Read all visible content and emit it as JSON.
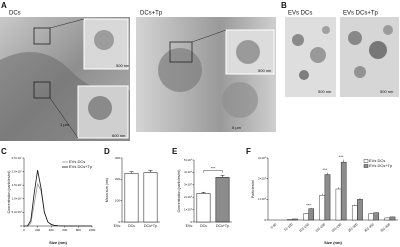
{
  "panel_labels": [
    "A",
    "B",
    "C",
    "D",
    "E",
    "F"
  ],
  "images": [
    {
      "title": "DCs",
      "scale_bars": [
        "500 nm",
        "1 µm",
        "600 nm"
      ]
    },
    {
      "title": "DCs+Tp",
      "scale_bars": [
        "500 nm",
        "5 µm"
      ]
    },
    {
      "title": "EVs DCs",
      "scale_bars": [
        "500 nm"
      ]
    },
    {
      "title": "EVs DCs+Tp",
      "scale_bars": [
        "500 nm"
      ]
    }
  ],
  "chart_data": [
    {
      "type": "line",
      "x_label": "Size (nm)",
      "y_label": "Concentration (particles/ml)",
      "x": [
        0,
        50,
        100,
        150,
        200,
        250,
        300,
        350,
        400,
        450,
        500,
        600,
        700,
        800,
        900,
        1000
      ],
      "series": [
        {
          "name": "EVs DCs",
          "color": "#9a9a9a",
          "values": [
            0,
            0,
            1000000,
            8000000,
            15500000,
            13000000,
            5000000,
            1500000,
            500000,
            200000,
            100000,
            0,
            0,
            0,
            0,
            0
          ]
        },
        {
          "name": "EVs DCs+Tp",
          "color": "#111111",
          "values": [
            0,
            0,
            2000000,
            12000000,
            20500000,
            14000000,
            5000000,
            1500000,
            600000,
            200000,
            100000,
            0,
            0,
            0,
            0,
            0
          ]
        }
      ],
      "xlim": [
        0,
        1000
      ],
      "xticks": [
        0,
        200,
        400,
        600,
        800,
        1000
      ],
      "ylim": [
        0,
        25000000
      ],
      "yticks": [
        0,
        {
          "value": 5000000,
          "label": "5.0×10⁶"
        },
        {
          "value": 10000000,
          "label": "1.0×10⁷"
        },
        {
          "value": 15000000,
          "label": "1.5×10⁷"
        },
        {
          "value": 20000000,
          "label": "2.0×10⁷"
        },
        {
          "value": 25000000,
          "label": "2.5×10⁷"
        }
      ]
    },
    {
      "type": "bar",
      "y_label": "Mean size (nm)",
      "category_prefix": "EVs:",
      "categories": [
        "DCs",
        "DCs+Tp"
      ],
      "values": [
        228,
        232
      ],
      "errors": [
        8,
        10
      ],
      "colors": [
        "#ffffff",
        "#ffffff"
      ],
      "ylim": [
        0,
        300
      ],
      "yticks": [
        0,
        100,
        200,
        300
      ]
    },
    {
      "type": "bar",
      "y_label": "Concentration (particles/ml)",
      "category_prefix": "EVs:",
      "categories": [
        "DCs",
        "DCs+Tp"
      ],
      "values": [
        2300000000,
        3600000000
      ],
      "errors": [
        100000000,
        150000000
      ],
      "colors": [
        "#ffffff",
        "#8c8c8c"
      ],
      "annotation": "***",
      "ylim": [
        0,
        5000000000
      ],
      "yticks": [
        0,
        {
          "value": 1000000000,
          "label": "1×10⁹"
        },
        {
          "value": 2000000000,
          "label": "2×10⁹"
        },
        {
          "value": 3000000000,
          "label": "3×10⁹"
        },
        {
          "value": 4000000000,
          "label": "4×10⁹"
        },
        {
          "value": 5000000000,
          "label": "5×10⁹"
        }
      ]
    },
    {
      "type": "grouped_bar",
      "x_label": "Size (nm)",
      "y_label": "Particles/ml",
      "categories": [
        "0-50",
        "51-100",
        "101-150",
        "151-200",
        "201-250",
        "251-300",
        "301-350",
        "351-400"
      ],
      "series": [
        {
          "name": "EVs DCs",
          "color": "#ffffff",
          "values": [
            0,
            20000000,
            300000000,
            1200000000,
            1500000000,
            700000000,
            300000000,
            100000000
          ],
          "errors": [
            0,
            5000000,
            30000000,
            80000000,
            90000000,
            50000000,
            30000000,
            20000000
          ]
        },
        {
          "name": "EVs DCs+Tp",
          "color": "#8c8c8c",
          "values": [
            0,
            50000000,
            550000000,
            2200000000,
            2800000000,
            1000000000,
            350000000,
            150000000
          ],
          "errors": [
            0,
            10000000,
            40000000,
            100000000,
            120000000,
            60000000,
            30000000,
            20000000
          ]
        }
      ],
      "annotations": [
        null,
        null,
        "***",
        "***",
        "***",
        null,
        null,
        null
      ],
      "ylim": [
        0,
        3000000000
      ],
      "yticks": [
        0,
        {
          "value": 1000000000,
          "label": "1×10⁹"
        },
        {
          "value": 2000000000,
          "label": "2×10⁹"
        },
        {
          "value": 3000000000,
          "label": "3×10⁹"
        }
      ]
    }
  ]
}
